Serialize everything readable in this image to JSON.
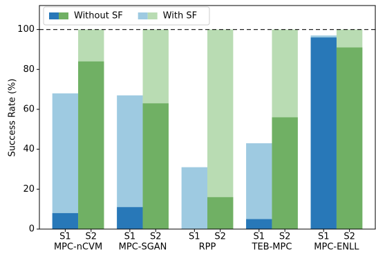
{
  "chart_data": {
    "type": "overlay_bar",
    "ylabel": "Success Rate (%)",
    "categories": [
      "MPC-nCVM",
      "MPC-SGAN",
      "RPP",
      "TEB-MPC",
      "MPC-ENLL"
    ],
    "subcategories": [
      "S1",
      "S2"
    ],
    "series": [
      {
        "name": "Without SF",
        "colors": [
          "#2878b8",
          "#70b064"
        ],
        "values": [
          [
            8,
            84
          ],
          [
            11,
            63
          ],
          [
            0,
            16
          ],
          [
            5,
            56
          ],
          [
            96,
            91
          ]
        ]
      },
      {
        "name": "With SF",
        "colors": [
          "#9ecae1",
          "#b9dcb3"
        ],
        "values": [
          [
            68,
            100
          ],
          [
            67,
            100
          ],
          [
            31,
            100
          ],
          [
            43,
            100
          ],
          [
            97,
            100
          ]
        ]
      }
    ],
    "reference_line": 100,
    "ylim": [
      0,
      112
    ],
    "yticks": [
      0,
      20,
      40,
      60,
      80,
      100
    ],
    "legend": "upper left"
  }
}
